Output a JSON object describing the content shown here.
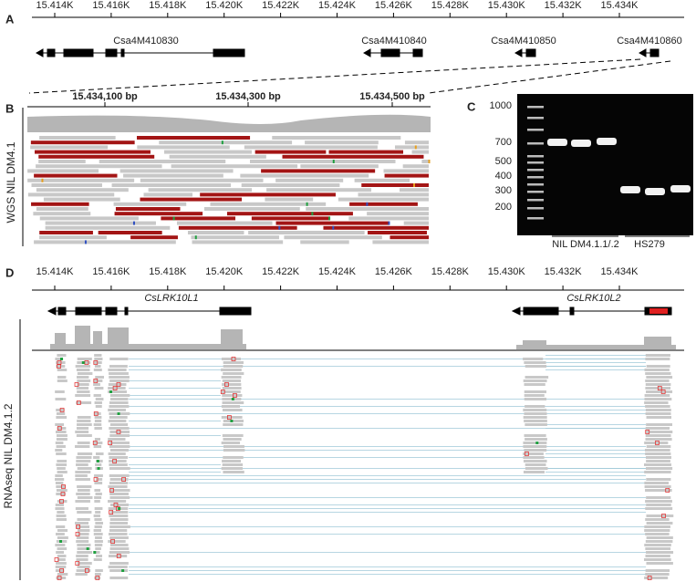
{
  "panels": {
    "A": {
      "label": "A",
      "ticks": [
        "15.414K",
        "15.416K",
        "15.418K",
        "15.420K",
        "15.422K",
        "15.424K",
        "15.426K",
        "15.428K",
        "15.430K",
        "15.432K",
        "15.434K"
      ],
      "genes": [
        "Csa4M410830",
        "Csa4M410840",
        "Csa4M410850",
        "Csa4M410860"
      ]
    },
    "B": {
      "label": "B",
      "ticks": [
        "15.434,100 bp",
        "15.434,300 bp",
        "15.434,500 bp"
      ],
      "track": "WGS NIL DM4.1"
    },
    "C": {
      "label": "C",
      "ladder": [
        "1000",
        "700",
        "500",
        "400",
        "300",
        "200"
      ],
      "lanes": [
        "NIL DM4.1.1/.2",
        "HS279"
      ]
    },
    "D": {
      "label": "D",
      "ticks": [
        "15.414K",
        "15.416K",
        "15.418K",
        "15.420K",
        "15.422K",
        "15.424K",
        "15.426K",
        "15.428K",
        "15.430K",
        "15.432K",
        "15.434K"
      ],
      "genes": [
        "CsLRK10L1",
        "CsLRK10L2"
      ],
      "track": "RNAseq NIL DM4.1.2"
    }
  }
}
